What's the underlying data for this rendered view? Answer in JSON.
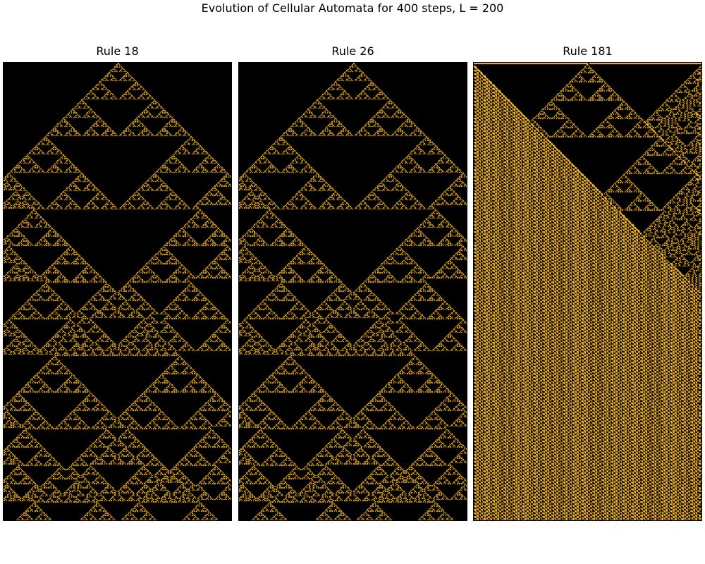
{
  "title": "Evolution of Cellular Automata for 400 steps, L = 200",
  "colors": {
    "background": "#000000",
    "active": "#fdbd2c"
  },
  "chart_data": [
    {
      "type": "heatmap",
      "title": "Rule 18",
      "rule": 18,
      "steps": 400,
      "width": 200,
      "initial_condition": "single-center",
      "boundary": "fixed-zero",
      "invert_colors": false
    },
    {
      "type": "heatmap",
      "title": "Rule 26",
      "rule": 26,
      "steps": 400,
      "width": 200,
      "initial_condition": "single-center",
      "boundary": "fixed-zero",
      "invert_colors": false
    },
    {
      "type": "heatmap",
      "title": "Rule 181",
      "rule": 181,
      "steps": 400,
      "width": 200,
      "initial_condition": "single-center",
      "boundary": "fixed-zero",
      "invert_colors": true
    }
  ]
}
